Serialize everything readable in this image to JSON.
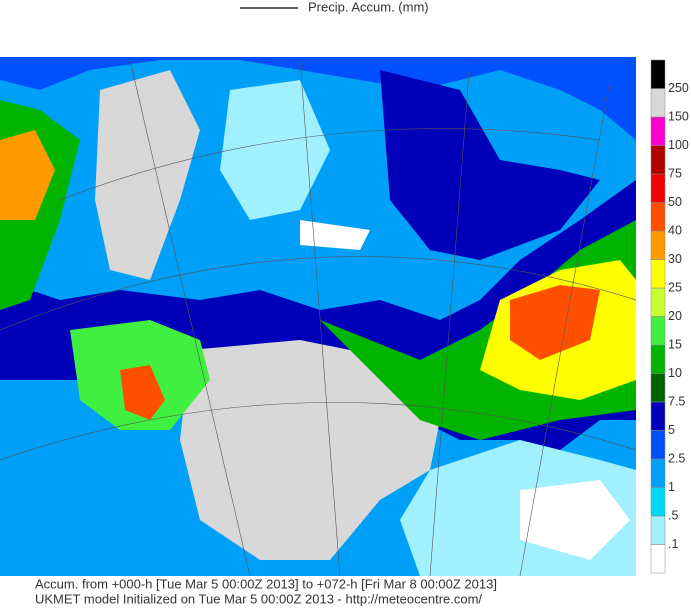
{
  "legend": {
    "title": "Precip. Accum. (mm)"
  },
  "colorbar": {
    "labels": [
      ".1",
      ".5",
      "1",
      "2.5",
      "5",
      "7.5",
      "10",
      "15",
      "20",
      "25",
      "30",
      "40",
      "50",
      "75",
      "100",
      "150",
      "250"
    ],
    "colors": [
      "#ffffff",
      "#a0f0ff",
      "#00d8f8",
      "#00a0f8",
      "#0050ff",
      "#0000b8",
      "#006400",
      "#00b400",
      "#40f040",
      "#c8ff30",
      "#ffff00",
      "#ff9a00",
      "#ff5000",
      "#f00000",
      "#b00000",
      "#ff00d0",
      "#d8d8d8",
      "#000000"
    ]
  },
  "footer": {
    "line1": "Accum. from +000-h [Tue Mar 5 00:00Z 2013] to +072-h [Fri Mar 8 00:00Z 2013]",
    "line2": "UKMET model Initialized on Tue Mar 5 00:00Z 2013 - http://meteocentre.com/"
  }
}
